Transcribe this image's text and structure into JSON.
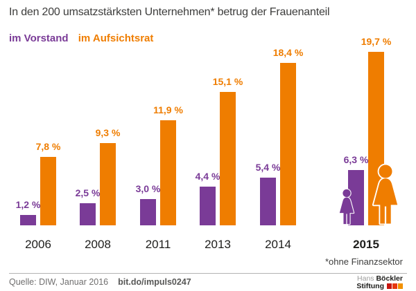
{
  "header": {
    "title": "In den 200 umsatzstärksten Unternehmen* betrug der Frauenanteil"
  },
  "legend": {
    "items": [
      {
        "label": "im Vorstand",
        "color": "#7a3b97"
      },
      {
        "label": "im Aufsichtsrat",
        "color": "#ef7d00"
      }
    ]
  },
  "chart_data": {
    "type": "bar",
    "title": "In den 200 umsatzstärksten Unternehmen* betrug der Frauenanteil",
    "categories": [
      "2006",
      "2008",
      "2011",
      "2013",
      "2014",
      "2015"
    ],
    "series": [
      {
        "name": "im Vorstand",
        "color": "#7a3b97",
        "values": [
          1.2,
          2.5,
          3.0,
          4.4,
          5.4,
          6.3
        ],
        "labels": [
          "1,2 %",
          "2,5 %",
          "3,0 %",
          "4,4 %",
          "5,4 %",
          "6,3 %"
        ]
      },
      {
        "name": "im Aufsichtsrat",
        "color": "#ef7d00",
        "values": [
          7.8,
          9.3,
          11.9,
          15.1,
          18.4,
          19.7
        ],
        "labels": [
          "7,8 %",
          "9,3 %",
          "11,9 %",
          "15,1 %",
          "18,4 %",
          "19,7 %"
        ]
      }
    ],
    "unit": "%",
    "ylim": [
      0,
      20
    ],
    "grid": false,
    "value_labels": true,
    "legend_position": "top-left",
    "highlight_category": "2015"
  },
  "footnote": "*ohne Finanzsektor",
  "footer": {
    "source": "Quelle: DIW, Januar 2016",
    "link": "bit.do/impuls0247"
  },
  "logo": {
    "line1_regular": "Hans",
    "line1_bold": "Böckler",
    "line2_bold": "Stiftung",
    "square_colors": [
      "#c8150f",
      "#e6380f",
      "#f29100"
    ]
  },
  "colors": {
    "vorstand": "#7a3b97",
    "aufsichtsrat": "#ef7d00",
    "title_text": "#3c3c3b",
    "year_text": "#1d1d1b",
    "divider": "#b2b2b2"
  }
}
